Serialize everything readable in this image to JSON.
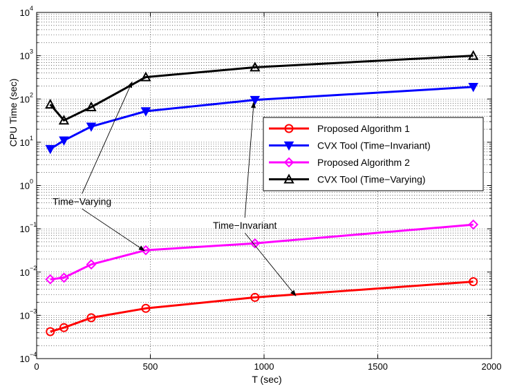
{
  "chart_data": {
    "type": "line",
    "title": "",
    "xlabel": "T (sec)",
    "ylabel": "CPU Time (sec)",
    "xlim": [
      0,
      2000
    ],
    "ylim": [
      0.0001,
      10000
    ],
    "yscale": "log",
    "grid": true,
    "x_ticks": [
      0,
      500,
      1000,
      1500,
      2000
    ],
    "x_tick_labels": [
      "0",
      "500",
      "1000",
      "1500",
      "2000"
    ],
    "y_tick_exponents": [
      -4,
      -3,
      -2,
      -1,
      0,
      1,
      2,
      3,
      4
    ],
    "y_tick_base": "10",
    "legend_position": "center-right",
    "series": [
      {
        "name": "Proposed Algorithm 1",
        "color": "#ff0000",
        "marker": "circle",
        "x": [
          60,
          120,
          240,
          480,
          960,
          1920
        ],
        "y": [
          0.00042,
          0.00052,
          0.00088,
          0.00145,
          0.0026,
          0.006
        ]
      },
      {
        "name": "CVX Tool (Time−Invariant)",
        "color": "#0000ff",
        "marker": "triangle-down",
        "x": [
          60,
          120,
          240,
          480,
          960,
          1920
        ],
        "y": [
          7,
          11,
          23,
          52,
          95,
          190
        ]
      },
      {
        "name": "Proposed Algorithm 2",
        "color": "#ff00ff",
        "marker": "diamond",
        "x": [
          60,
          120,
          240,
          480,
          960,
          1920
        ],
        "y": [
          0.0068,
          0.0074,
          0.015,
          0.032,
          0.046,
          0.125
        ]
      },
      {
        "name": "CVX Tool (Time−Varying)",
        "color": "#000000",
        "marker": "triangle-up",
        "x": [
          60,
          120,
          240,
          480,
          960,
          1920
        ],
        "y": [
          75,
          32,
          65,
          320,
          540,
          1000
        ]
      }
    ],
    "annotations": [
      {
        "text": "Time−Varying",
        "label_at": [
          70,
          0.36
        ],
        "arrows_to": [
          [
            475,
            0.031
          ],
          [
            420,
            250
          ]
        ]
      },
      {
        "text": "Time−Invariant",
        "label_at": [
          775,
          0.1
        ],
        "arrows_to": [
          [
            1140,
            0.0028
          ],
          [
            955,
            85
          ]
        ]
      }
    ]
  }
}
